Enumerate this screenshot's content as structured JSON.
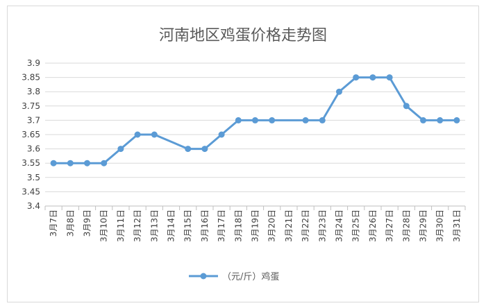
{
  "chart_data": {
    "type": "line",
    "title": "河南地区鸡蛋价格走势图",
    "categories": [
      "3月7日",
      "3月8日",
      "3月9日",
      "3月10日",
      "3月11日",
      "3月12日",
      "3月13日",
      "3月14日",
      "3月15日",
      "3月16日",
      "3月17日",
      "3月18日",
      "3月19日",
      "3月20日",
      "3月21日",
      "3月22日",
      "3月23日",
      "3月24日",
      "3月25日",
      "3月26日",
      "3月27日",
      "3月28日",
      "3月29日",
      "3月30日",
      "3月31日"
    ],
    "series": [
      {
        "name": "（元/斤）鸡蛋",
        "color": "#5b9bd5",
        "values": [
          3.55,
          3.55,
          3.55,
          3.55,
          3.6,
          3.65,
          3.65,
          null,
          3.6,
          3.6,
          3.65,
          3.7,
          3.7,
          3.7,
          null,
          3.7,
          3.7,
          3.8,
          3.85,
          3.85,
          3.85,
          3.75,
          3.7,
          3.7,
          3.7
        ]
      }
    ],
    "yticks": [
      "3.4",
      "3.45",
      "3.5",
      "3.55",
      "3.6",
      "3.65",
      "3.7",
      "3.75",
      "3.8",
      "3.85",
      "3.9"
    ],
    "ylim": [
      3.4,
      3.9
    ],
    "grid": true,
    "legend": "bottom"
  }
}
